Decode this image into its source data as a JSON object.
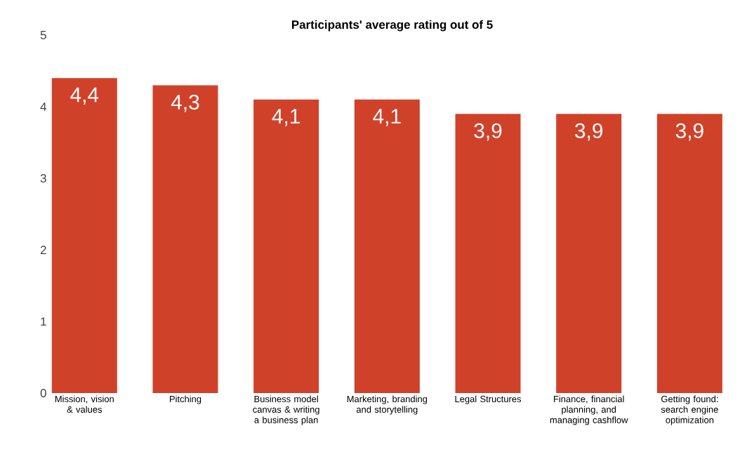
{
  "chart_data": {
    "type": "bar",
    "title": "Participants' average rating out of 5",
    "categories": [
      "Mission, vision & values",
      "Pitching",
      "Business model canvas & writing a business plan",
      "Marketing, branding and storytelling",
      "Legal Structures",
      "Finance, financial planning, and managing cashflow",
      "Getting found: search engine optimization"
    ],
    "values": [
      4.4,
      4.3,
      4.1,
      4.1,
      3.9,
      3.9,
      3.9
    ],
    "value_labels": [
      "4,4",
      "4,3",
      "4,1",
      "4,1",
      "3,9",
      "3,9",
      "3,9"
    ],
    "color": "#cf4229",
    "ylim": [
      0,
      5
    ],
    "yticks": [
      0,
      1,
      2,
      3,
      4,
      5
    ]
  }
}
